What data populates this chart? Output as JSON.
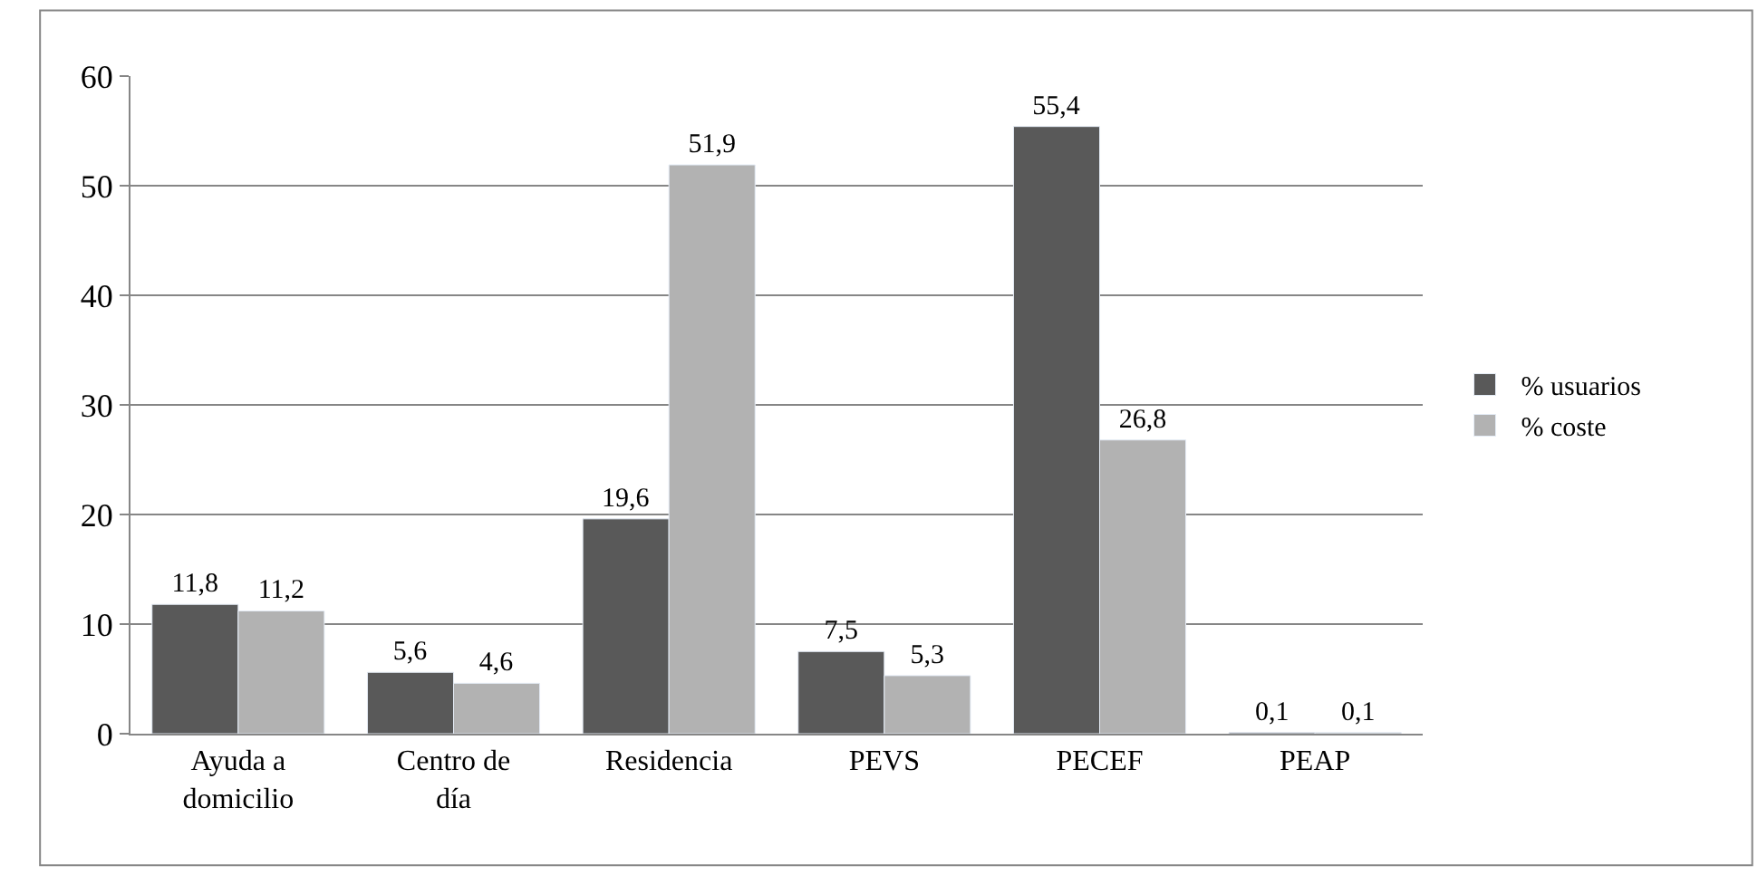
{
  "chart_data": {
    "type": "bar",
    "categories": [
      "Ayuda a domicilio",
      "Centro de día",
      "Residencia",
      "PEVS",
      "PECEF",
      "PEAP"
    ],
    "series": [
      {
        "name": "% usuarios",
        "color": "#595959",
        "values": [
          11.8,
          5.6,
          19.6,
          7.5,
          55.4,
          0.1
        ],
        "value_labels": [
          "11,8",
          "5,6",
          "19,6",
          "7,5",
          "55,4",
          "0,1"
        ]
      },
      {
        "name": "% coste",
        "color": "#b2b2b2",
        "values": [
          11.2,
          4.6,
          51.9,
          5.3,
          26.8,
          0.1
        ],
        "value_labels": [
          "11,2",
          "4,6",
          "51,9",
          "5,3",
          "26,8",
          "0,1"
        ]
      }
    ],
    "ylim": [
      0,
      60
    ],
    "yticks": [
      0,
      10,
      20,
      30,
      40,
      50,
      60
    ],
    "grid": "y",
    "legend": "right"
  }
}
